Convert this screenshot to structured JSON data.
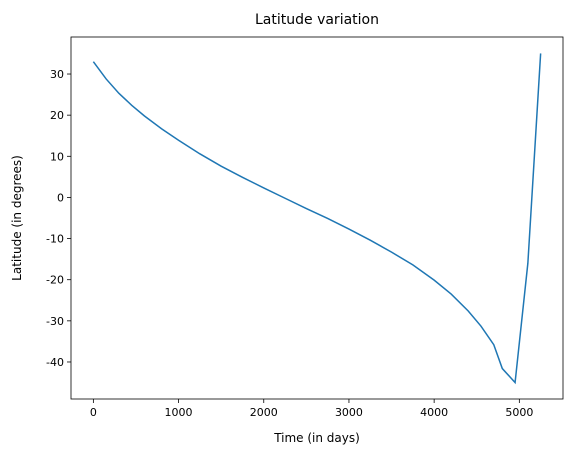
{
  "chart_data": {
    "type": "line",
    "title": "Latitude variation",
    "x_label": "Time (in days)",
    "y_label": "Latitude (in degrees)",
    "x": [
      0,
      150,
      300,
      450,
      600,
      800,
      1000,
      1250,
      1500,
      1750,
      2000,
      2250,
      2500,
      2750,
      3000,
      3250,
      3500,
      3750,
      4000,
      4200,
      4400,
      4550,
      4700,
      4800,
      4950,
      5100,
      5250
    ],
    "series": [
      {
        "name": "Latitude",
        "color": "#1f77b4",
        "values": [
          33,
          28.8,
          25.3,
          22.4,
          19.8,
          16.7,
          13.9,
          10.6,
          7.6,
          4.9,
          2.3,
          -0.2,
          -2.7,
          -5.1,
          -7.7,
          -10.4,
          -13.3,
          -16.4,
          -20.1,
          -23.5,
          -27.6,
          -31.3,
          -35.8,
          -41.6,
          -45,
          -16,
          35
        ]
      }
    ],
    "xlim": [
      -262.5,
      5512.5
    ],
    "ylim": [
      -49,
      39
    ],
    "xticks": [
      0,
      1000,
      2000,
      3000,
      4000,
      5000
    ],
    "yticks": [
      -40,
      -30,
      -20,
      -10,
      0,
      10,
      20,
      30
    ]
  }
}
